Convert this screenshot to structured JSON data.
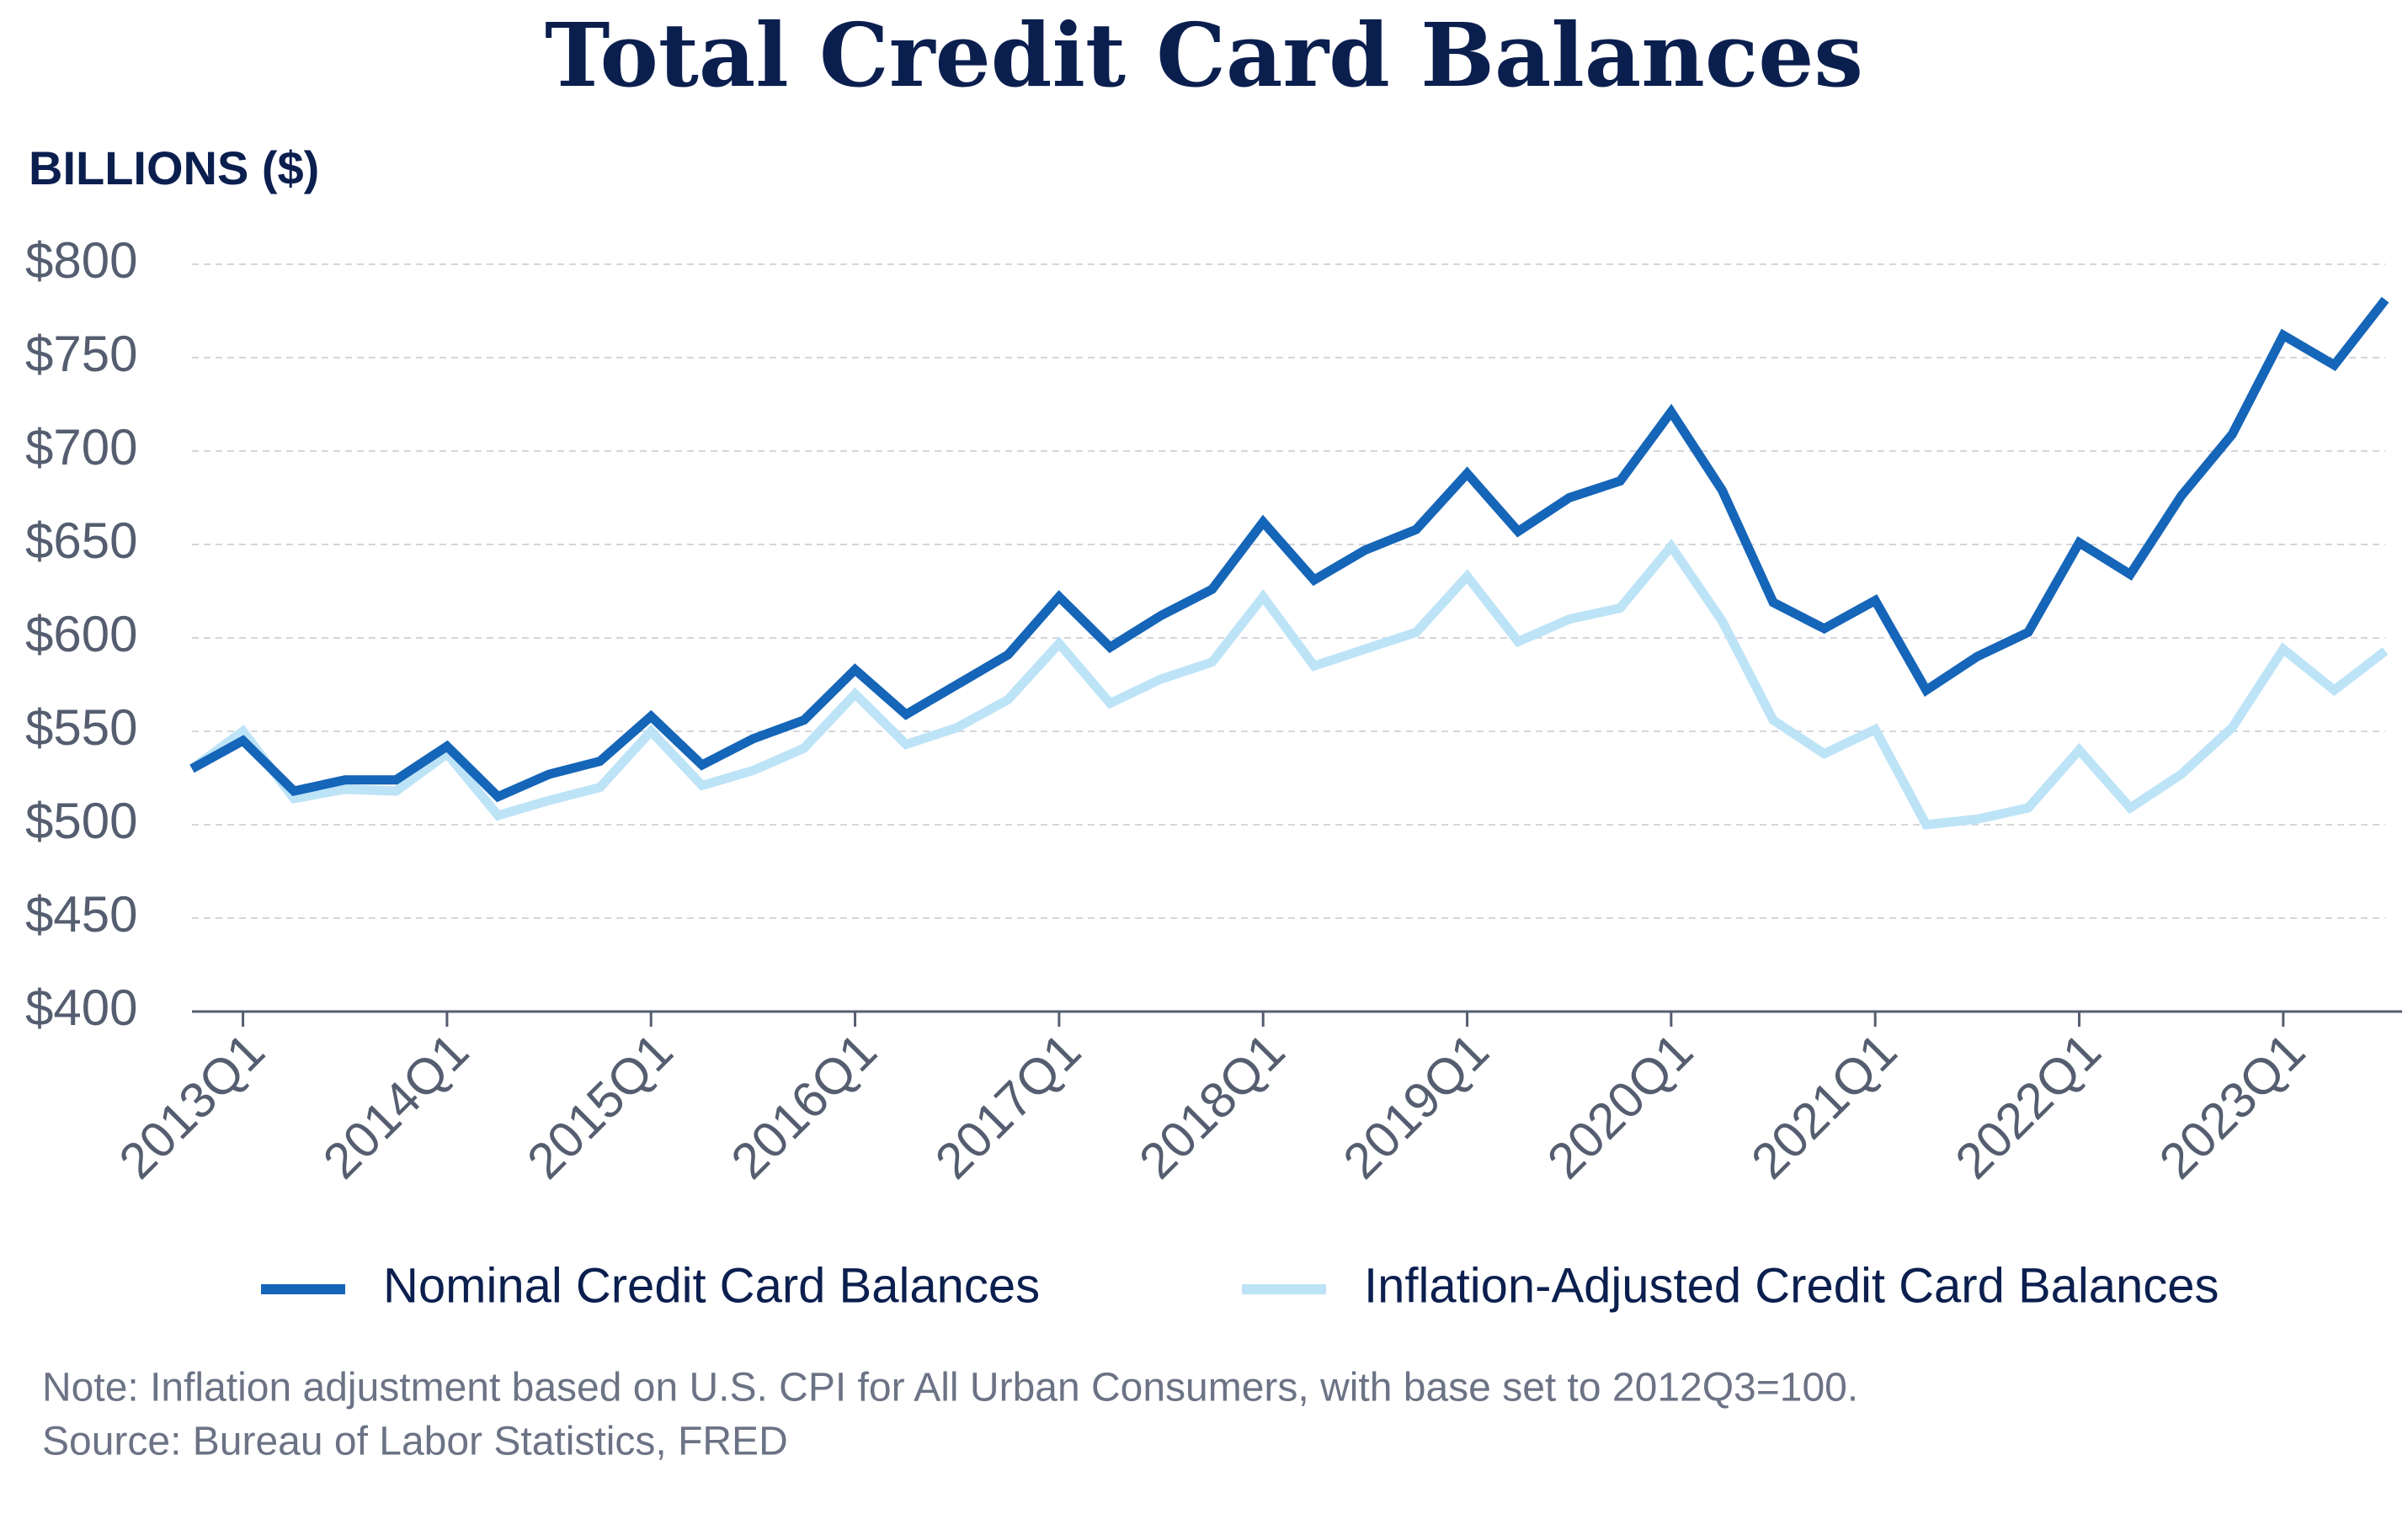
{
  "chart_data": {
    "type": "line",
    "title": "Total Credit Card Balances",
    "y_axis_label": "BILLIONS ($)",
    "categories": [
      null,
      "2013Q1",
      null,
      null,
      null,
      "2014Q1",
      null,
      null,
      null,
      "2015Q1",
      null,
      null,
      null,
      "2016Q1",
      null,
      null,
      null,
      "2017Q1",
      null,
      null,
      null,
      "2018Q1",
      null,
      null,
      null,
      "2019Q1",
      null,
      null,
      null,
      "2020Q1",
      null,
      null,
      null,
      "2021Q1",
      null,
      null,
      null,
      "2022Q1",
      null,
      null,
      null,
      "2023Q1",
      null,
      null
    ],
    "series": [
      {
        "name": "Nominal Credit Card Balances",
        "color": "#1565b8",
        "values": [
          530,
          545,
          518,
          524,
          524,
          542,
          515,
          527,
          534,
          558,
          532,
          546,
          556,
          583,
          559,
          575,
          591,
          622,
          595,
          612,
          626,
          662,
          631,
          647,
          658,
          688,
          657,
          675,
          684,
          721,
          679,
          619,
          605,
          620,
          572,
          590,
          603,
          651,
          634,
          676,
          709,
          762,
          746,
          781
        ]
      },
      {
        "name": "Inflation-Adjusted Credit Card Balances",
        "color": "#bde3f7",
        "values": [
          530,
          550,
          514,
          519,
          518,
          538,
          505,
          513,
          520,
          550,
          521,
          529,
          541,
          570,
          543,
          552,
          567,
          597,
          565,
          578,
          587,
          622,
          585,
          594,
          603,
          633,
          598,
          610,
          616,
          649,
          609,
          556,
          538,
          551,
          500,
          503,
          509,
          540,
          509,
          527,
          552,
          594,
          572,
          593
        ]
      }
    ],
    "ylim": [
      400,
      800
    ],
    "yticks": [
      {
        "value": 400,
        "label": "$400"
      },
      {
        "value": 450,
        "label": "$450"
      },
      {
        "value": 500,
        "label": "$500"
      },
      {
        "value": 550,
        "label": "$550"
      },
      {
        "value": 600,
        "label": "$600"
      },
      {
        "value": 650,
        "label": "$650"
      },
      {
        "value": 700,
        "label": "$700"
      },
      {
        "value": 750,
        "label": "$750"
      },
      {
        "value": 800,
        "label": "$800"
      }
    ],
    "grid": true,
    "legend": "bottom",
    "note": "Note: Inflation adjustment based on U.S. CPI for All Urban Consumers, with base set to 2012Q3=100.",
    "source": "Source: Bureau of Labor Statistics, FRED"
  }
}
